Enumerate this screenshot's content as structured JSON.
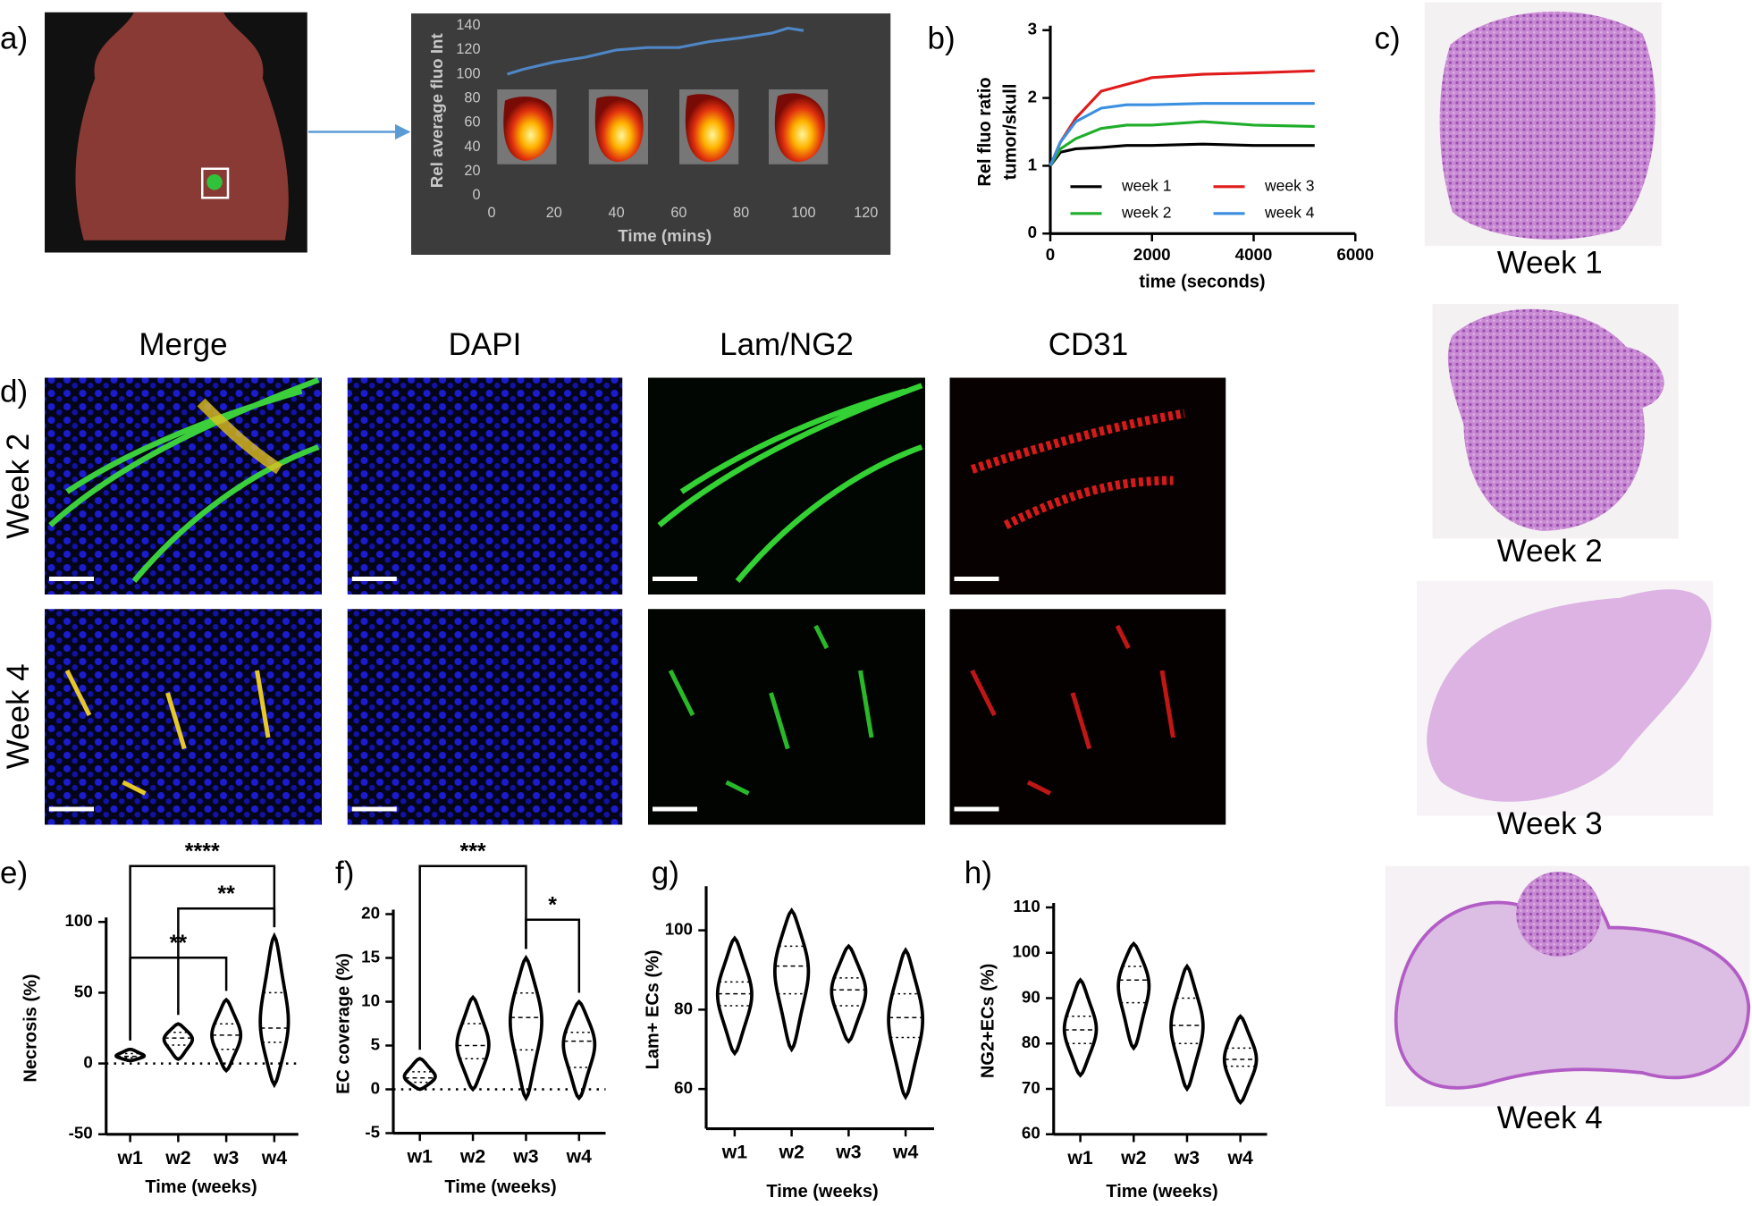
{
  "panel_labels": [
    "a)",
    "b)",
    "c)",
    "d)",
    "e)",
    "f)",
    "g)",
    "h)"
  ],
  "microscopy": {
    "columns": [
      "Merge",
      "DAPI",
      "Lam/NG2",
      "CD31"
    ],
    "rows": [
      "Week 2",
      "Week 4"
    ]
  },
  "histology": {
    "labels": [
      "Week 1",
      "Week 2",
      "Week 3",
      "Week 4"
    ]
  },
  "chart_data": [
    {
      "type": "line",
      "xlabel": "Time (mins)",
      "ylabel": "Rel average fluo Int",
      "x": [
        5,
        10,
        20,
        30,
        40,
        50,
        60,
        70,
        80,
        90,
        95,
        100
      ],
      "values": [
        100,
        104,
        110,
        114,
        120,
        122,
        122,
        127,
        130,
        134,
        138,
        136
      ],
      "color": "#4f86c6",
      "xlim": [
        0,
        120
      ],
      "xticks": [
        0,
        20,
        40,
        60,
        80,
        100,
        120
      ],
      "ylim": [
        0,
        140
      ],
      "yticks": [
        0,
        20,
        40,
        60,
        80,
        100,
        120,
        140
      ],
      "grid": false
    },
    {
      "type": "line",
      "xlabel": "time (seconds)",
      "ylabel": [
        "Rel fluo ratio",
        "tumor/skull"
      ],
      "x": [
        0,
        200,
        500,
        1000,
        1500,
        2000,
        3000,
        4000,
        5200
      ],
      "series": [
        {
          "name": "week 1",
          "color": "#000000",
          "values": [
            1,
            1.2,
            1.25,
            1.27,
            1.3,
            1.3,
            1.32,
            1.3,
            1.3
          ]
        },
        {
          "name": "week 2",
          "color": "#1fae2a",
          "values": [
            1,
            1.25,
            1.4,
            1.55,
            1.6,
            1.6,
            1.65,
            1.6,
            1.58
          ]
        },
        {
          "name": "week 3",
          "color": "#e01b1b",
          "values": [
            1,
            1.35,
            1.7,
            2.1,
            2.2,
            2.3,
            2.35,
            2.37,
            2.4
          ]
        },
        {
          "name": "week 4",
          "color": "#3b8fe0",
          "values": [
            1,
            1.35,
            1.65,
            1.85,
            1.9,
            1.9,
            1.92,
            1.92,
            1.92
          ]
        }
      ],
      "xlim": [
        0,
        6000
      ],
      "xticks": [
        0,
        2000,
        4000,
        6000
      ],
      "ylim": [
        0,
        3
      ],
      "yticks": [
        0,
        1,
        2,
        3
      ],
      "grid": false,
      "legend": "inside-bottom"
    },
    {
      "type": "violin",
      "xlabel": "Time (weeks)",
      "ylabel": "Necrosis (%)",
      "categories": [
        "w1",
        "w2",
        "w3",
        "w4"
      ],
      "min": [
        2,
        3,
        -5,
        -15
      ],
      "q1": [
        4,
        13,
        10,
        15
      ],
      "median": [
        5,
        18,
        20,
        25
      ],
      "q3": [
        7,
        22,
        28,
        50
      ],
      "max": [
        10,
        28,
        45,
        90
      ],
      "ylim": [
        -50,
        100
      ],
      "yticks": [
        -50,
        0,
        50,
        100
      ],
      "hline": 0,
      "annotations": [
        {
          "text": "****",
          "from": "w1",
          "to": "w4"
        },
        {
          "text": "**",
          "from": "w2",
          "to": "w4"
        },
        {
          "text": "**",
          "from": "w1",
          "to": "w3"
        }
      ]
    },
    {
      "type": "violin",
      "xlabel": "Time (weeks)",
      "ylabel": "EC coverage (%)",
      "categories": [
        "w1",
        "w2",
        "w3",
        "w4"
      ],
      "min": [
        0,
        0,
        -1,
        -1
      ],
      "q1": [
        0.8,
        3.5,
        4.5,
        2.5
      ],
      "median": [
        1.3,
        5,
        8.2,
        5.5
      ],
      "q3": [
        2,
        7.5,
        11,
        6.5
      ],
      "max": [
        3.5,
        10.5,
        15,
        10
      ],
      "ylim": [
        -5,
        20
      ],
      "yticks": [
        -5,
        0,
        5,
        10,
        15,
        20
      ],
      "hline": 0,
      "annotations": [
        {
          "text": "***",
          "from": "w1",
          "to": "w3"
        },
        {
          "text": "*",
          "from": "w3",
          "to": "w4"
        }
      ]
    },
    {
      "type": "violin",
      "xlabel": "Time (weeks)",
      "ylabel": "Lam+ ECs (%)",
      "categories": [
        "w1",
        "w2",
        "w3",
        "w4"
      ],
      "min": [
        69,
        70,
        72,
        58
      ],
      "q1": [
        81,
        84,
        81,
        73
      ],
      "median": [
        84,
        91,
        85,
        78
      ],
      "q3": [
        87,
        96,
        88,
        84
      ],
      "max": [
        98,
        105,
        96,
        95
      ],
      "ylim": [
        50,
        110
      ],
      "yticks": [
        60,
        80,
        100
      ]
    },
    {
      "type": "violin",
      "xlabel": "Time (weeks)",
      "ylabel": "NG2+ECs (%)",
      "categories": [
        "w1",
        "w2",
        "w3",
        "w4"
      ],
      "min": [
        73,
        79,
        70,
        67
      ],
      "q1": [
        80,
        89,
        80,
        75
      ],
      "median": [
        83,
        94,
        84,
        76.5
      ],
      "q3": [
        86,
        97,
        90,
        79
      ],
      "max": [
        94,
        102,
        97,
        86
      ],
      "ylim": [
        60,
        110
      ],
      "yticks": [
        60,
        70,
        80,
        90,
        100,
        110
      ]
    }
  ]
}
